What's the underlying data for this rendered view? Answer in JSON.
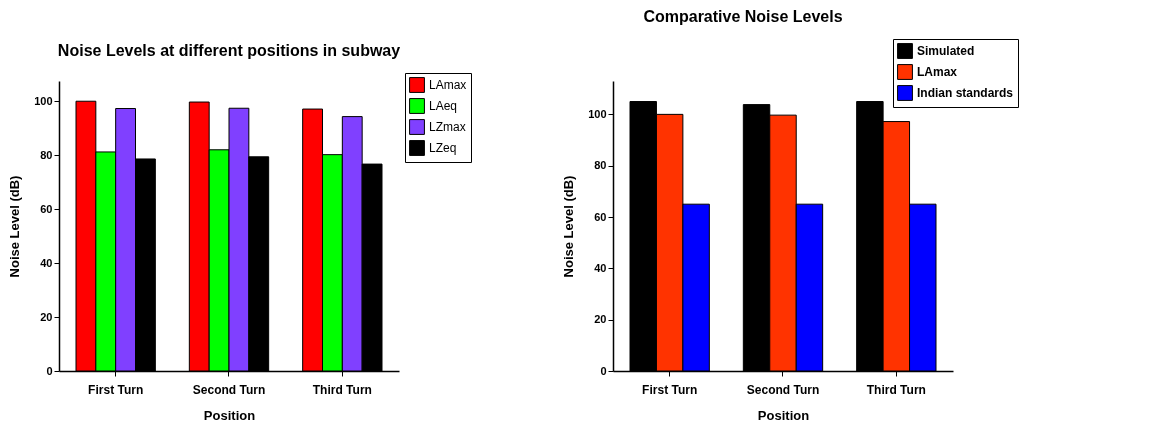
{
  "chart_data": [
    {
      "type": "bar",
      "title": "Noise Levels at different positions in subway",
      "xlabel": "Position",
      "ylabel": "Noise Level (dB)",
      "categories": [
        "First Turn",
        "Second Turn",
        "Third Turn"
      ],
      "ylim": [
        0,
        107.5
      ],
      "yticks": [
        0,
        20,
        40,
        60,
        80,
        100
      ],
      "grid": false,
      "legend": "top right",
      "series": [
        {
          "name": "LAmax",
          "color": "#ff0000",
          "values": [
            100,
            99.7,
            97.1
          ]
        },
        {
          "name": "LAeq",
          "color": "#00ff00",
          "values": [
            81.2,
            82,
            80.2
          ]
        },
        {
          "name": "LZmax",
          "color": "#8040ff",
          "values": [
            97.3,
            97.4,
            94.3
          ]
        },
        {
          "name": "LZeq",
          "color": "#000000",
          "values": [
            78.6,
            79.4,
            76.7
          ]
        }
      ]
    },
    {
      "type": "bar",
      "title": "Comparative Noise Levels",
      "xlabel": "Position",
      "ylabel": "Noise Level (dB)",
      "categories": [
        "First Turn",
        "Second Turn",
        "Third Turn"
      ],
      "ylim": [
        0,
        113
      ],
      "yticks": [
        0,
        20,
        40,
        60,
        80,
        100
      ],
      "grid": false,
      "legend": "top right",
      "series": [
        {
          "name": "Simulated",
          "color": "#000000",
          "values": [
            105,
            103.8,
            105
          ]
        },
        {
          "name": "LAmax",
          "color": "#ff3300",
          "values": [
            100,
            99.7,
            97.2
          ]
        },
        {
          "name": "Indian standards",
          "color": "#0000ff",
          "values": [
            65,
            65,
            65
          ]
        }
      ]
    }
  ]
}
